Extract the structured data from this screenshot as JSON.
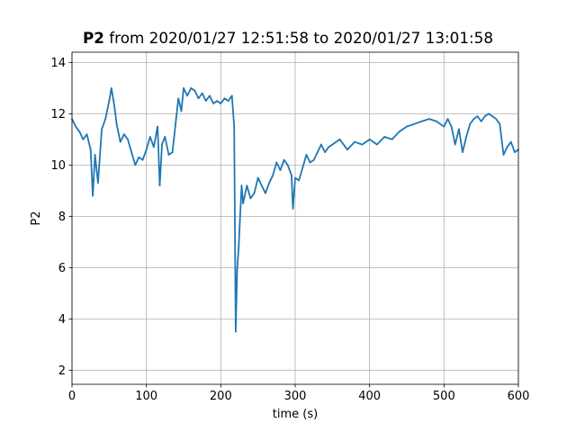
{
  "chart_data": {
    "type": "line",
    "title": {
      "bold": "P2",
      "rest": " from 2020/01/27 12:51:58 to 2020/01/27 13:01:58"
    },
    "xlabel": "time (s)",
    "ylabel": "P2",
    "xlim": [
      0,
      600
    ],
    "ylim": [
      1.45,
      14.4
    ],
    "xticks": [
      0,
      100,
      200,
      300,
      400,
      500,
      600
    ],
    "yticks": [
      2,
      4,
      6,
      8,
      10,
      12,
      14
    ],
    "grid": true,
    "line_color": "#1f77b4",
    "series": [
      {
        "x": [
          0,
          5,
          10,
          15,
          20,
          25,
          28,
          31,
          35,
          40,
          45,
          50,
          53,
          57,
          60,
          65,
          70,
          75,
          80,
          85,
          90,
          95,
          100,
          105,
          110,
          115,
          118,
          121,
          125,
          130,
          135,
          140,
          143,
          147,
          150,
          155,
          160,
          165,
          170,
          175,
          180,
          185,
          190,
          195,
          200,
          205,
          210,
          215,
          218,
          220,
          222,
          224,
          226,
          228,
          230,
          235,
          240,
          245,
          250,
          255,
          260,
          265,
          270,
          275,
          280,
          285,
          290,
          295,
          297,
          300,
          305,
          310,
          315,
          320,
          325,
          330,
          335,
          340,
          345,
          350,
          360,
          370,
          380,
          390,
          400,
          410,
          420,
          430,
          440,
          450,
          460,
          470,
          480,
          490,
          495,
          500,
          505,
          510,
          515,
          520,
          525,
          530,
          535,
          540,
          545,
          550,
          555,
          560,
          565,
          570,
          575,
          580,
          585,
          590,
          595,
          600
        ],
        "y": [
          11.8,
          11.5,
          11.3,
          11.0,
          11.2,
          10.6,
          8.8,
          10.4,
          9.3,
          11.4,
          11.8,
          12.5,
          13.0,
          12.3,
          11.6,
          10.9,
          11.2,
          11.0,
          10.5,
          10.0,
          10.3,
          10.2,
          10.6,
          11.1,
          10.7,
          11.5,
          9.2,
          10.8,
          11.1,
          10.4,
          10.5,
          11.8,
          12.6,
          12.1,
          13.0,
          12.7,
          13.0,
          12.9,
          12.6,
          12.8,
          12.5,
          12.7,
          12.4,
          12.5,
          12.4,
          12.6,
          12.5,
          12.7,
          11.5,
          3.5,
          5.9,
          6.8,
          8.0,
          9.2,
          8.5,
          9.2,
          8.7,
          8.9,
          9.5,
          9.2,
          8.9,
          9.3,
          9.6,
          10.1,
          9.8,
          10.2,
          10.0,
          9.6,
          8.3,
          9.5,
          9.4,
          9.9,
          10.4,
          10.1,
          10.2,
          10.5,
          10.8,
          10.5,
          10.7,
          10.8,
          11.0,
          10.6,
          10.9,
          10.8,
          11.0,
          10.8,
          11.1,
          11.0,
          11.3,
          11.5,
          11.6,
          11.7,
          11.8,
          11.7,
          11.6,
          11.5,
          11.8,
          11.5,
          10.8,
          11.4,
          10.5,
          11.1,
          11.6,
          11.8,
          11.9,
          11.7,
          11.9,
          12.0,
          11.9,
          11.8,
          11.6,
          10.4,
          10.7,
          10.9,
          10.5,
          10.6
        ]
      }
    ]
  }
}
